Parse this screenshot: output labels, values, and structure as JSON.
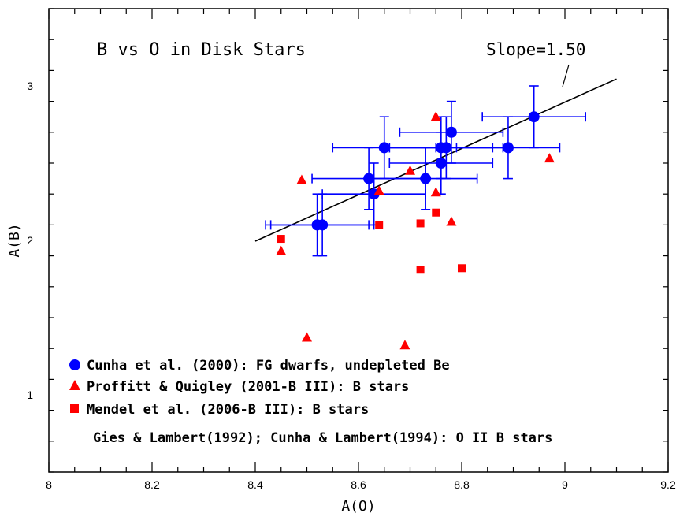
{
  "chart_data": {
    "type": "scatter",
    "title": "B vs O in Disk Stars",
    "xlabel": "A(O)",
    "ylabel": "A(B)",
    "xlim": [
      8.0,
      9.2
    ],
    "ylim": [
      0.5,
      3.5
    ],
    "x_ticks": [
      8,
      8.2,
      8.4,
      8.6,
      8.8,
      9,
      9.2
    ],
    "x_tick_labels": [
      "8",
      "8.2",
      "8.4",
      "8.6",
      "8.8",
      "9",
      "9.2"
    ],
    "y_ticks": [
      1,
      2,
      3
    ],
    "y_tick_labels": [
      "1",
      "2",
      "3"
    ],
    "grid": false,
    "legend_position": "bottom-left",
    "annotation": {
      "text": "Slope=1.50"
    },
    "fit_line": {
      "x": [
        8.4,
        9.1
      ],
      "y": [
        1.995,
        3.045
      ],
      "slope": 1.5,
      "color": "#000000"
    },
    "series": [
      {
        "name": "Cunha et al. (2000): FG dwarfs, undepleted Be",
        "marker": "circle",
        "color": "#0000ff",
        "points": [
          {
            "x": 8.52,
            "y": 2.1,
            "xerr": 0.1,
            "yerr": 0.2
          },
          {
            "x": 8.53,
            "y": 2.1,
            "xerr": 0.1,
            "yerr": 0.2
          },
          {
            "x": 8.62,
            "y": 2.4,
            "xerr": 0.11,
            "yerr": 0.2
          },
          {
            "x": 8.63,
            "y": 2.3,
            "xerr": 0.1,
            "yerr": 0.2
          },
          {
            "x": 8.65,
            "y": 2.6,
            "xerr": 0.1,
            "yerr": 0.2
          },
          {
            "x": 8.73,
            "y": 2.4,
            "xerr": 0.1,
            "yerr": 0.2
          },
          {
            "x": 8.76,
            "y": 2.5,
            "xerr": 0.1,
            "yerr": 0.2
          },
          {
            "x": 8.76,
            "y": 2.6,
            "xerr": 0.1,
            "yerr": 0.2
          },
          {
            "x": 8.77,
            "y": 2.6,
            "xerr": 0.11,
            "yerr": 0.2
          },
          {
            "x": 8.78,
            "y": 2.7,
            "xerr": 0.1,
            "yerr": 0.2
          },
          {
            "x": 8.89,
            "y": 2.6,
            "xerr": 0.1,
            "yerr": 0.2
          },
          {
            "x": 8.94,
            "y": 2.8,
            "xerr": 0.1,
            "yerr": 0.2
          }
        ]
      },
      {
        "name": "Proffitt & Quigley (2001-B III): B stars",
        "marker": "triangle",
        "color": "#ff0000",
        "points": [
          {
            "x": 8.45,
            "y": 1.93
          },
          {
            "x": 8.49,
            "y": 2.39
          },
          {
            "x": 8.5,
            "y": 1.37
          },
          {
            "x": 8.64,
            "y": 2.32
          },
          {
            "x": 8.69,
            "y": 1.32
          },
          {
            "x": 8.7,
            "y": 2.45
          },
          {
            "x": 8.75,
            "y": 2.8
          },
          {
            "x": 8.75,
            "y": 2.31
          },
          {
            "x": 8.78,
            "y": 2.12
          },
          {
            "x": 8.97,
            "y": 2.53
          }
        ]
      },
      {
        "name": "Mendel et al. (2006-B III): B stars",
        "marker": "square",
        "color": "#ff0000",
        "points": [
          {
            "x": 8.45,
            "y": 2.01
          },
          {
            "x": 8.64,
            "y": 2.1
          },
          {
            "x": 8.72,
            "y": 2.11
          },
          {
            "x": 8.72,
            "y": 1.81
          },
          {
            "x": 8.75,
            "y": 2.18
          },
          {
            "x": 8.8,
            "y": 1.82
          }
        ]
      }
    ],
    "legend_note": "Gies & Lambert(1992); Cunha & Lambert(1994): O II B stars"
  }
}
